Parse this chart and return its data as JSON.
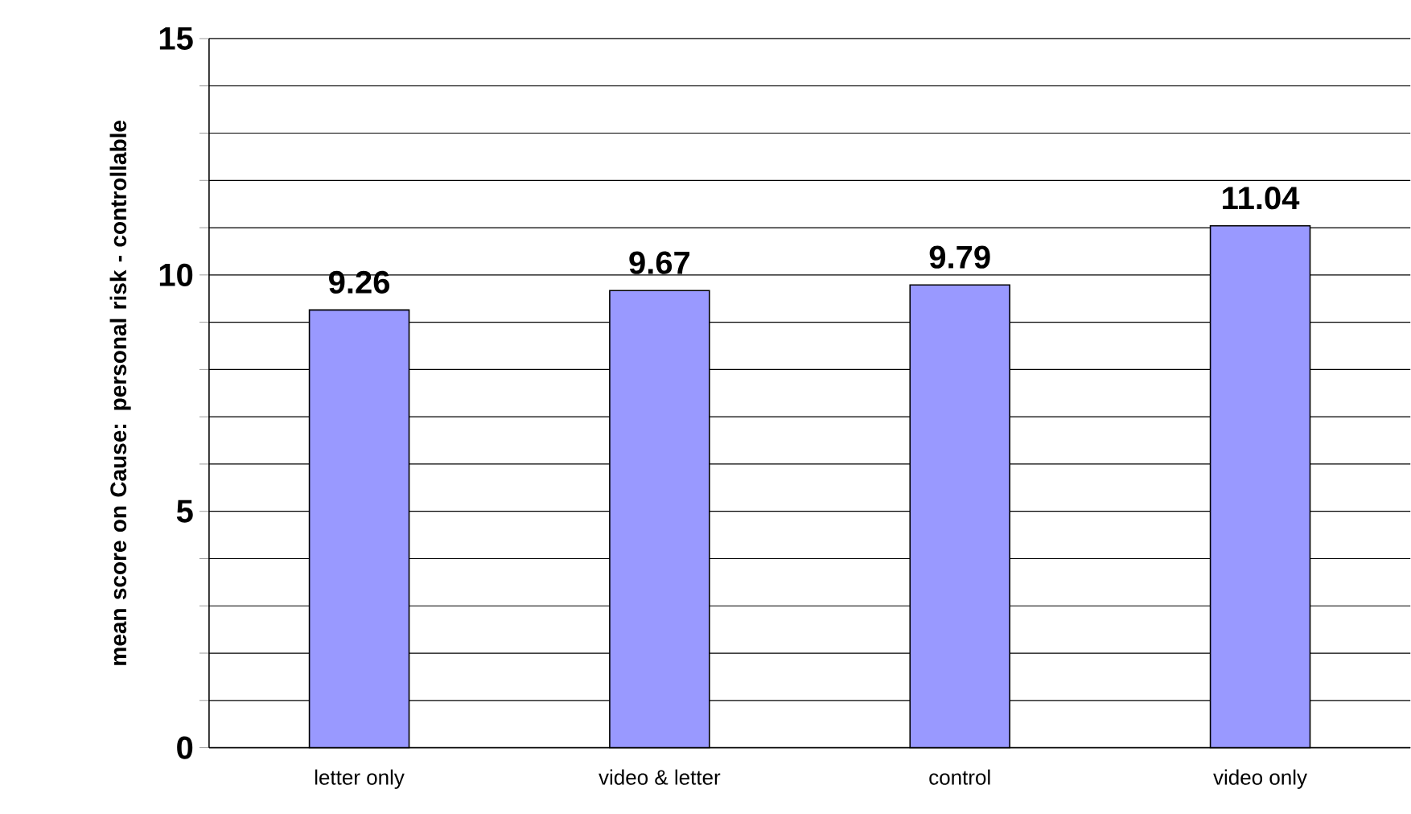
{
  "chart_data": {
    "type": "bar",
    "ylabel": "mean score on Cause: personal risk - controllable",
    "categories": [
      "letter only",
      "video & letter",
      "control",
      "video only"
    ],
    "values": [
      9.26,
      9.67,
      9.79,
      11.04
    ],
    "color": "#9999ff",
    "ylim": [
      0,
      15
    ],
    "yticks": [
      0,
      {
        "value": 1,
        "label": null
      },
      {
        "value": 2,
        "label": null
      },
      {
        "value": 3,
        "label": null
      },
      {
        "value": 4,
        "label": null
      },
      5,
      {
        "value": 6,
        "label": null
      },
      {
        "value": 7,
        "label": null
      },
      {
        "value": 8,
        "label": null
      },
      {
        "value": 9,
        "label": null
      },
      10,
      {
        "value": 11,
        "label": null
      },
      {
        "value": 12,
        "label": null
      },
      {
        "value": 13,
        "label": null
      },
      {
        "value": 14,
        "label": null
      },
      15
    ],
    "grid": "y",
    "data_labels": true
  }
}
